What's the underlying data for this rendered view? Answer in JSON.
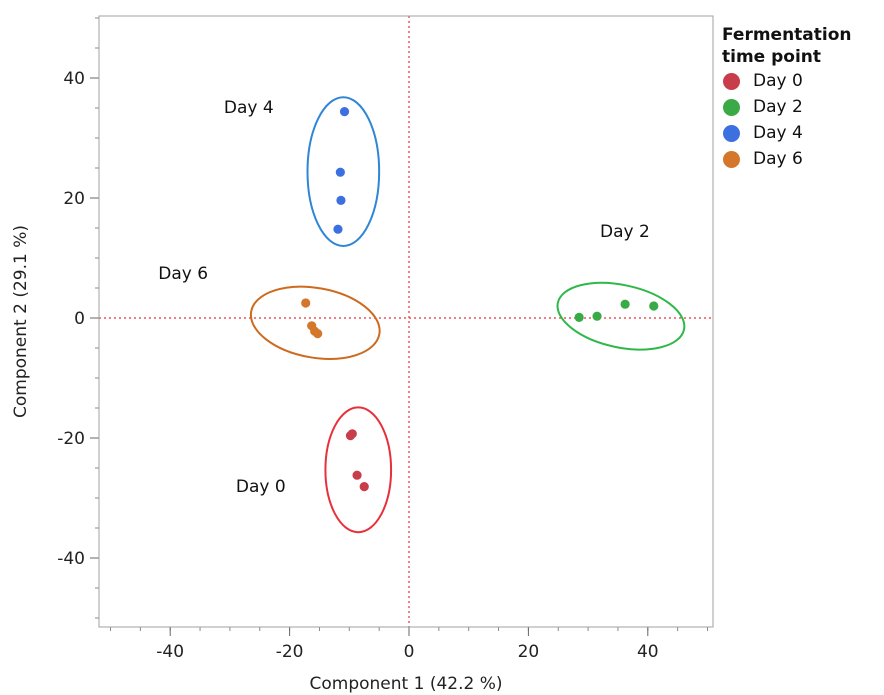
{
  "chart_data": {
    "type": "scatter",
    "xlabel": "Component 1  (42.2 %)",
    "ylabel": "Component 2  (29.1 %)",
    "xlim": [
      -50,
      50
    ],
    "ylim": [
      -50,
      50
    ],
    "x_ticks": [
      -40,
      -20,
      0,
      20,
      40
    ],
    "y_ticks": [
      -40,
      -20,
      0,
      20,
      40
    ],
    "x_minor_step": 5,
    "y_minor_step": 5,
    "reference_lines": {
      "x": 0,
      "y": 0,
      "style": "dotted",
      "color": "#e8303a"
    },
    "legend": {
      "title": "Fermentation time point",
      "title_lines": [
        "Fermentation",
        "time point"
      ],
      "position": "right"
    },
    "series": [
      {
        "name": "Day 0",
        "color": "#c93c4a",
        "ellipse_color": "#e8303a",
        "points": [
          [
            -9.5,
            -19.3
          ],
          [
            -9.8,
            -19.6
          ],
          [
            -8.7,
            -26.2
          ],
          [
            -7.5,
            -28.1
          ]
        ],
        "ellipse": {
          "cx": -8.5,
          "cy": -25.3,
          "rx": 5.5,
          "ry": 10.4
        },
        "annotation": {
          "text": "Day 0",
          "x": -29,
          "y": -29
        }
      },
      {
        "name": "Day 2",
        "color": "#3aaa46",
        "ellipse_color": "#2fb84a",
        "points": [
          [
            28.5,
            0.1
          ],
          [
            31.5,
            0.3
          ],
          [
            36.2,
            2.3
          ],
          [
            41.0,
            2.0
          ]
        ],
        "ellipse": {
          "cx": 35.5,
          "cy": 0.3,
          "rx": 10.8,
          "ry": 5.2,
          "angle": 12
        },
        "annotation": {
          "text": "Day 2",
          "x": 32,
          "y": 13.5
        }
      },
      {
        "name": "Day 4",
        "color": "#3c6fe0",
        "ellipse_color": "#2f86d6",
        "points": [
          [
            -10.8,
            34.4
          ],
          [
            -11.5,
            24.3
          ],
          [
            -11.4,
            19.6
          ],
          [
            -11.9,
            14.8
          ]
        ],
        "ellipse": {
          "cx": -11.0,
          "cy": 24.4,
          "rx": 6.0,
          "ry": 12.4
        },
        "annotation": {
          "text": "Day 4",
          "x": -31,
          "y": 34.2
        }
      },
      {
        "name": "Day 6",
        "color": "#d4772a",
        "ellipse_color": "#cd6a1e",
        "points": [
          [
            -17.3,
            2.5
          ],
          [
            -16.3,
            -1.3
          ],
          [
            -15.8,
            -2.2
          ],
          [
            -15.3,
            -2.6
          ]
        ],
        "ellipse": {
          "cx": -15.7,
          "cy": -0.8,
          "rx": 10.9,
          "ry": 5.8,
          "angle": 10
        },
        "annotation": {
          "text": "Day 6",
          "x": -42,
          "y": 6.5
        }
      }
    ]
  }
}
